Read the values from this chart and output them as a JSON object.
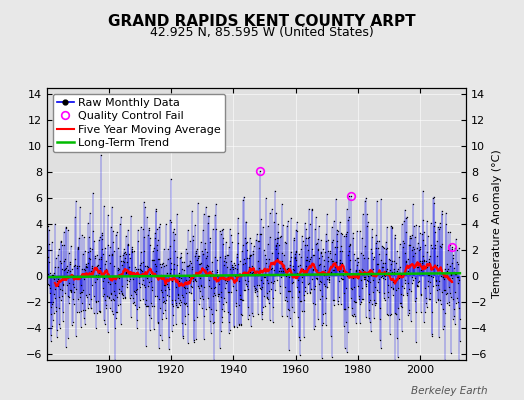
{
  "title": "GRAND RAPIDS KENT COUNTY ARPT",
  "subtitle": "42.925 N, 85.595 W (United States)",
  "ylabel": "Temperature Anomaly (°C)",
  "watermark": "Berkeley Earth",
  "xlim": [
    1880,
    2015
  ],
  "ylim": [
    -6.5,
    14.5
  ],
  "yticks": [
    -6,
    -4,
    -2,
    0,
    2,
    4,
    6,
    8,
    10,
    12,
    14
  ],
  "xticks": [
    1900,
    1920,
    1940,
    1960,
    1980,
    2000
  ],
  "seed": 42,
  "start_year": 1880,
  "end_year": 2013,
  "moving_avg_window": 60,
  "raw_color": "#0000EE",
  "qc_color": "#FF00FF",
  "mavg_color": "#FF0000",
  "trend_color": "#00BB00",
  "dot_color": "#000000",
  "bg_color": "#E0E0E0",
  "fig_color": "#E8E8E8",
  "title_fontsize": 11,
  "subtitle_fontsize": 9,
  "legend_fontsize": 8,
  "ylabel_fontsize": 8,
  "tick_labelsize": 8
}
